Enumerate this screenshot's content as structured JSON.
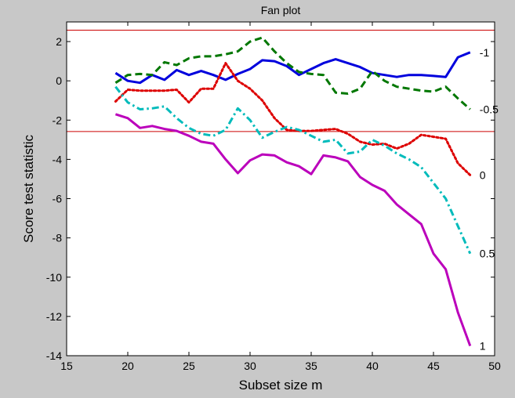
{
  "chart_data": {
    "type": "line",
    "title": "Fan plot",
    "xlabel": "Subset size m",
    "ylabel": "Score test statistic",
    "xlim": [
      15,
      50
    ],
    "ylim": [
      -14,
      3
    ],
    "xticks": [
      15,
      20,
      25,
      30,
      35,
      40,
      45,
      50
    ],
    "yticks": [
      2,
      0,
      -2,
      -4,
      -6,
      -8,
      -10,
      -12,
      -14
    ],
    "grid": false,
    "reference_lines": [
      2.58,
      -2.58
    ],
    "reference_color": "#cc0000",
    "series": [
      {
        "label": "-1",
        "color": "#0000dd",
        "style": "solid",
        "points": [
          [
            19,
            0.4
          ],
          [
            20,
            0
          ],
          [
            21,
            -0.1
          ],
          [
            22,
            0.3
          ],
          [
            23,
            0.05
          ],
          [
            24,
            0.55
          ],
          [
            25,
            0.3
          ],
          [
            26,
            0.5
          ],
          [
            27,
            0.3
          ],
          [
            28,
            0.05
          ],
          [
            29,
            0.35
          ],
          [
            30,
            0.6
          ],
          [
            31,
            1.05
          ],
          [
            32,
            1.0
          ],
          [
            33,
            0.75
          ],
          [
            34,
            0.3
          ],
          [
            35,
            0.6
          ],
          [
            36,
            0.9
          ],
          [
            37,
            1.1
          ],
          [
            38,
            0.9
          ],
          [
            39,
            0.7
          ],
          [
            40,
            0.4
          ],
          [
            41,
            0.3
          ],
          [
            42,
            0.2
          ],
          [
            43,
            0.3
          ],
          [
            44,
            0.3
          ],
          [
            45,
            0.25
          ],
          [
            46,
            0.2
          ],
          [
            47,
            1.2
          ],
          [
            48,
            1.45
          ]
        ]
      },
      {
        "label": "-0.5",
        "color": "#007700",
        "style": "dashed",
        "points": [
          [
            19,
            -0.1
          ],
          [
            20,
            0.3
          ],
          [
            21,
            0.35
          ],
          [
            22,
            0.3
          ],
          [
            23,
            0.95
          ],
          [
            24,
            0.8
          ],
          [
            25,
            1.15
          ],
          [
            26,
            1.25
          ],
          [
            27,
            1.25
          ],
          [
            28,
            1.35
          ],
          [
            29,
            1.5
          ],
          [
            30,
            2.0
          ],
          [
            31,
            2.2
          ],
          [
            32,
            1.5
          ],
          [
            33,
            0.9
          ],
          [
            34,
            0.45
          ],
          [
            35,
            0.35
          ],
          [
            36,
            0.3
          ],
          [
            37,
            -0.6
          ],
          [
            38,
            -0.65
          ],
          [
            39,
            -0.4
          ],
          [
            40,
            0.5
          ],
          [
            41,
            0.0
          ],
          [
            42,
            -0.3
          ],
          [
            43,
            -0.4
          ],
          [
            44,
            -0.5
          ],
          [
            45,
            -0.55
          ],
          [
            46,
            -0.3
          ],
          [
            47,
            -0.9
          ],
          [
            48,
            -1.45
          ]
        ]
      },
      {
        "label": "0",
        "color": "#dd0000",
        "style": "dotted",
        "points": [
          [
            19,
            -1.05
          ],
          [
            20,
            -0.45
          ],
          [
            21,
            -0.5
          ],
          [
            22,
            -0.5
          ],
          [
            23,
            -0.5
          ],
          [
            24,
            -0.45
          ],
          [
            25,
            -1.1
          ],
          [
            26,
            -0.4
          ],
          [
            27,
            -0.4
          ],
          [
            28,
            0.9
          ],
          [
            29,
            0.0
          ],
          [
            30,
            -0.4
          ],
          [
            31,
            -1.0
          ],
          [
            32,
            -1.9
          ],
          [
            33,
            -2.5
          ],
          [
            34,
            -2.55
          ],
          [
            35,
            -2.55
          ],
          [
            36,
            -2.5
          ],
          [
            37,
            -2.45
          ],
          [
            38,
            -2.7
          ],
          [
            39,
            -3.1
          ],
          [
            40,
            -3.25
          ],
          [
            41,
            -3.2
          ],
          [
            42,
            -3.45
          ],
          [
            43,
            -3.2
          ],
          [
            44,
            -2.75
          ],
          [
            45,
            -2.85
          ],
          [
            46,
            -2.95
          ],
          [
            47,
            -4.2
          ],
          [
            48,
            -4.8
          ]
        ]
      },
      {
        "label": "0.5",
        "color": "#00bbbb",
        "style": "dashdot",
        "points": [
          [
            19,
            -0.3
          ],
          [
            20,
            -1.1
          ],
          [
            21,
            -1.45
          ],
          [
            22,
            -1.4
          ],
          [
            23,
            -1.3
          ],
          [
            24,
            -1.9
          ],
          [
            25,
            -2.4
          ],
          [
            26,
            -2.7
          ],
          [
            27,
            -2.8
          ],
          [
            28,
            -2.5
          ],
          [
            29,
            -1.4
          ],
          [
            30,
            -2.0
          ],
          [
            31,
            -2.9
          ],
          [
            32,
            -2.6
          ],
          [
            33,
            -2.35
          ],
          [
            34,
            -2.5
          ],
          [
            35,
            -2.8
          ],
          [
            36,
            -3.1
          ],
          [
            37,
            -3.0
          ],
          [
            38,
            -3.7
          ],
          [
            39,
            -3.6
          ],
          [
            40,
            -3.0
          ],
          [
            41,
            -3.3
          ],
          [
            42,
            -3.7
          ],
          [
            43,
            -4.0
          ],
          [
            44,
            -4.4
          ],
          [
            45,
            -5.2
          ],
          [
            46,
            -6.0
          ],
          [
            47,
            -7.4
          ],
          [
            48,
            -8.8
          ]
        ]
      },
      {
        "label": "1",
        "color": "#bb00bb",
        "style": "solid",
        "points": [
          [
            19,
            -1.7
          ],
          [
            20,
            -1.9
          ],
          [
            21,
            -2.4
          ],
          [
            22,
            -2.3
          ],
          [
            23,
            -2.45
          ],
          [
            24,
            -2.55
          ],
          [
            25,
            -2.8
          ],
          [
            26,
            -3.1
          ],
          [
            27,
            -3.2
          ],
          [
            28,
            -4.0
          ],
          [
            29,
            -4.7
          ],
          [
            30,
            -4.05
          ],
          [
            31,
            -3.75
          ],
          [
            32,
            -3.8
          ],
          [
            33,
            -4.15
          ],
          [
            34,
            -4.35
          ],
          [
            35,
            -4.75
          ],
          [
            36,
            -3.8
          ],
          [
            37,
            -3.9
          ],
          [
            38,
            -4.1
          ],
          [
            39,
            -4.9
          ],
          [
            40,
            -5.3
          ],
          [
            41,
            -5.6
          ],
          [
            42,
            -6.3
          ],
          [
            43,
            -6.8
          ],
          [
            44,
            -7.3
          ],
          [
            45,
            -8.8
          ],
          [
            46,
            -9.6
          ],
          [
            47,
            -11.8
          ],
          [
            48,
            -13.5
          ]
        ]
      }
    ]
  }
}
